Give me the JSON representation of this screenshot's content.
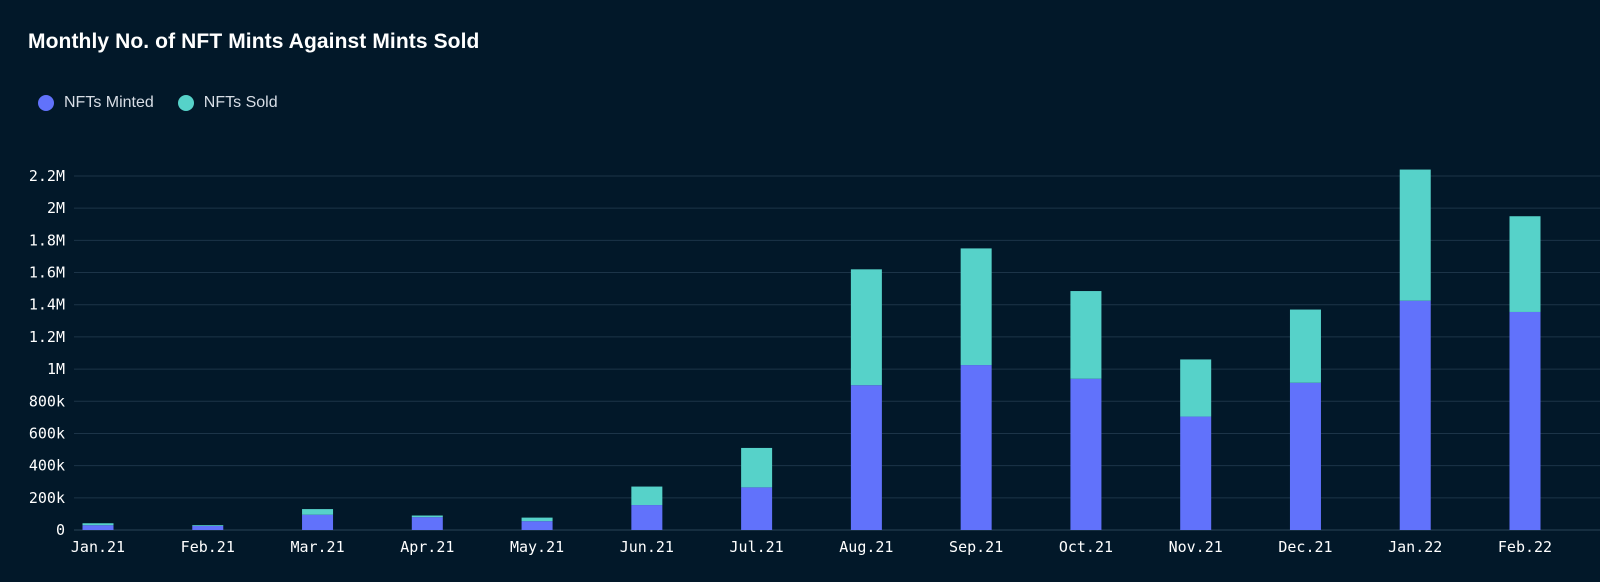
{
  "chart_data": {
    "type": "bar",
    "stacked": true,
    "title": "Monthly No. of NFT Mints Against Mints Sold",
    "xlabel": "",
    "ylabel": "",
    "categories": [
      "Jan.21",
      "Feb.21",
      "Mar.21",
      "Apr.21",
      "May.21",
      "Jun.21",
      "Jul.21",
      "Aug.21",
      "Sep.21",
      "Oct.21",
      "Nov.21",
      "Dec.21",
      "Jan.22",
      "Feb.22"
    ],
    "series": [
      {
        "name": "NFTs Minted",
        "color": "#6172fb",
        "values": [
          30000,
          25000,
          95000,
          80000,
          55000,
          155000,
          265000,
          900000,
          1025000,
          940000,
          705000,
          915000,
          1425000,
          1355000
        ]
      },
      {
        "name": "NFTs Sold",
        "color": "#56d2c9",
        "values": [
          12000,
          5000,
          35000,
          10000,
          22000,
          115000,
          245000,
          720000,
          725000,
          545000,
          355000,
          455000,
          815000,
          595000
        ]
      }
    ],
    "ylim": [
      0,
      2200000
    ],
    "yticks": [
      0,
      200000,
      400000,
      600000,
      800000,
      1000000,
      1200000,
      1400000,
      1600000,
      1800000,
      2000000,
      2200000
    ],
    "ytick_labels": [
      "0",
      "200k",
      "400k",
      "600k",
      "800k",
      "1M",
      "1.2M",
      "1.4M",
      "1.6M",
      "1.8M",
      "2M",
      "2.2M"
    ],
    "grid": true,
    "legend_position": "top-left"
  },
  "legend": {
    "minted_label": "NFTs Minted",
    "sold_label": "NFTs Sold"
  }
}
